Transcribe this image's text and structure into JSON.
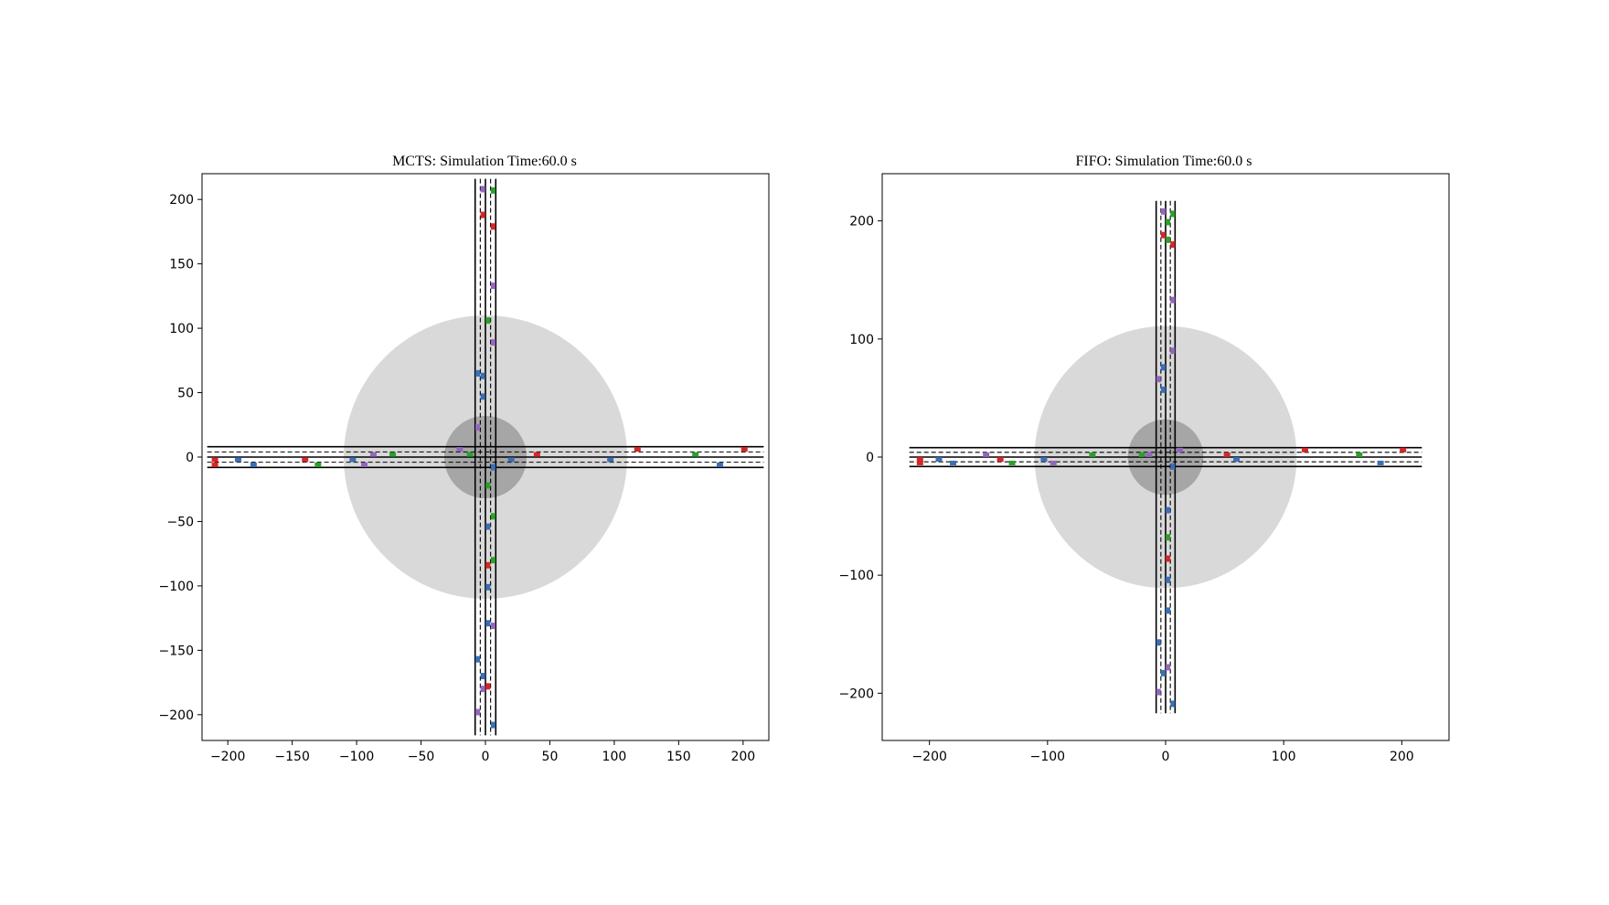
{
  "chart_data": [
    {
      "type": "scatter",
      "title": "MCTS: Simulation Time:60.0 s",
      "xlim": [
        -220,
        220
      ],
      "ylim": [
        -220,
        220
      ],
      "xticks": [
        -200,
        -150,
        -100,
        -50,
        0,
        50,
        100,
        150,
        200
      ],
      "yticks": [
        -200,
        -150,
        -100,
        -50,
        0,
        50,
        100,
        150,
        200
      ],
      "xticklabels": [
        "−200",
        "−150",
        "−100",
        "−50",
        "0",
        "50",
        "100",
        "150",
        "200"
      ],
      "yticklabels": [
        "−200",
        "−150",
        "−100",
        "−50",
        "0",
        "50",
        "100",
        "150",
        "200"
      ],
      "grid": false,
      "zones": [
        {
          "kind": "outer-zone",
          "radius": 110,
          "color": "#d9d9d9"
        },
        {
          "kind": "inner-zone",
          "radius": 32,
          "color": "#a6a6a6"
        }
      ],
      "roads": {
        "extent": 216,
        "edge": 8,
        "center": 0,
        "lane_dividers": [
          -4,
          4
        ]
      },
      "colors": {
        "blue": "#3b6fb6",
        "red": "#d62728",
        "green": "#2ca02c",
        "purple": "#9467bd"
      },
      "vehicles": [
        {
          "x": -210,
          "y": -2,
          "c": "red"
        },
        {
          "x": -210,
          "y": -6,
          "c": "red"
        },
        {
          "x": -192,
          "y": -2,
          "c": "blue"
        },
        {
          "x": -180,
          "y": -6,
          "c": "blue"
        },
        {
          "x": -140,
          "y": -2,
          "c": "red"
        },
        {
          "x": -130,
          "y": -6,
          "c": "green"
        },
        {
          "x": -103,
          "y": -2,
          "c": "blue"
        },
        {
          "x": -94,
          "y": -6,
          "c": "purple"
        },
        {
          "x": -87,
          "y": 2,
          "c": "purple"
        },
        {
          "x": -72,
          "y": 2,
          "c": "green"
        },
        {
          "x": -20,
          "y": 6,
          "c": "purple"
        },
        {
          "x": -12,
          "y": 2,
          "c": "green"
        },
        {
          "x": 20,
          "y": -2,
          "c": "blue"
        },
        {
          "x": 40,
          "y": 2,
          "c": "red"
        },
        {
          "x": 97,
          "y": -2,
          "c": "blue"
        },
        {
          "x": 118,
          "y": 6,
          "c": "red"
        },
        {
          "x": 163,
          "y": 2,
          "c": "green"
        },
        {
          "x": 182,
          "y": -6,
          "c": "blue"
        },
        {
          "x": 201,
          "y": 6,
          "c": "red"
        },
        {
          "x": -2,
          "y": 208,
          "c": "purple"
        },
        {
          "x": 6,
          "y": 207,
          "c": "green"
        },
        {
          "x": -2,
          "y": 188,
          "c": "red"
        },
        {
          "x": 6,
          "y": 179,
          "c": "red"
        },
        {
          "x": 6,
          "y": 133,
          "c": "purple"
        },
        {
          "x": 2,
          "y": 106,
          "c": "green"
        },
        {
          "x": 6,
          "y": 89,
          "c": "purple"
        },
        {
          "x": -6,
          "y": 65,
          "c": "blue"
        },
        {
          "x": -2,
          "y": 63,
          "c": "blue"
        },
        {
          "x": -2,
          "y": 47,
          "c": "blue"
        },
        {
          "x": -6,
          "y": 23,
          "c": "purple"
        },
        {
          "x": 6,
          "y": -8,
          "c": "blue"
        },
        {
          "x": 2,
          "y": -22,
          "c": "green"
        },
        {
          "x": 6,
          "y": -46,
          "c": "green"
        },
        {
          "x": 2,
          "y": -54,
          "c": "blue"
        },
        {
          "x": 6,
          "y": -80,
          "c": "green"
        },
        {
          "x": 2,
          "y": -84,
          "c": "red"
        },
        {
          "x": 2,
          "y": -101,
          "c": "blue"
        },
        {
          "x": 2,
          "y": -129,
          "c": "blue"
        },
        {
          "x": 6,
          "y": -131,
          "c": "purple"
        },
        {
          "x": -6,
          "y": -157,
          "c": "blue"
        },
        {
          "x": -2,
          "y": -170,
          "c": "blue"
        },
        {
          "x": 2,
          "y": -178,
          "c": "red"
        },
        {
          "x": -2,
          "y": -180,
          "c": "purple"
        },
        {
          "x": -6,
          "y": -198,
          "c": "purple"
        },
        {
          "x": 6,
          "y": -208,
          "c": "blue"
        }
      ]
    },
    {
      "type": "scatter",
      "title": "FIFO: Simulation Time:60.0 s",
      "xlim": [
        -240,
        240
      ],
      "ylim": [
        -240,
        240
      ],
      "xticks": [
        -200,
        -100,
        0,
        100,
        200
      ],
      "yticks": [
        -200,
        -100,
        0,
        100,
        200
      ],
      "xticklabels": [
        "−200",
        "−100",
        "0",
        "100",
        "200"
      ],
      "yticklabels": [
        "−200",
        "−100",
        "0",
        "100",
        "200"
      ],
      "grid": false,
      "zones": [
        {
          "kind": "outer-zone",
          "radius": 111,
          "color": "#d9d9d9"
        },
        {
          "kind": "inner-zone",
          "radius": 32,
          "color": "#a6a6a6"
        }
      ],
      "roads": {
        "extent": 217,
        "edge": 8,
        "center": 0,
        "lane_dividers": [
          -4,
          4
        ]
      },
      "colors": {
        "blue": "#3b6fb6",
        "red": "#d62728",
        "green": "#2ca02c",
        "purple": "#9467bd"
      },
      "vehicles": [
        {
          "x": -208,
          "y": -2,
          "c": "red"
        },
        {
          "x": -208,
          "y": -5,
          "c": "red"
        },
        {
          "x": -192,
          "y": -2,
          "c": "blue"
        },
        {
          "x": -180,
          "y": -5,
          "c": "blue"
        },
        {
          "x": -152,
          "y": 2,
          "c": "purple"
        },
        {
          "x": -140,
          "y": -2,
          "c": "red"
        },
        {
          "x": -130,
          "y": -5,
          "c": "green"
        },
        {
          "x": -103,
          "y": -2,
          "c": "blue"
        },
        {
          "x": -95,
          "y": -5,
          "c": "purple"
        },
        {
          "x": -62,
          "y": 2,
          "c": "green"
        },
        {
          "x": -20,
          "y": 2,
          "c": "green"
        },
        {
          "x": -14,
          "y": 2,
          "c": "purple"
        },
        {
          "x": 12,
          "y": 6,
          "c": "purple"
        },
        {
          "x": 52,
          "y": 2,
          "c": "red"
        },
        {
          "x": 60,
          "y": -2,
          "c": "blue"
        },
        {
          "x": 118,
          "y": 6,
          "c": "red"
        },
        {
          "x": 164,
          "y": 2,
          "c": "green"
        },
        {
          "x": 182,
          "y": -5,
          "c": "blue"
        },
        {
          "x": 201,
          "y": 6,
          "c": "red"
        },
        {
          "x": -2,
          "y": 208,
          "c": "purple"
        },
        {
          "x": 6,
          "y": 206,
          "c": "green"
        },
        {
          "x": 2,
          "y": 199,
          "c": "green"
        },
        {
          "x": -2,
          "y": 188,
          "c": "red"
        },
        {
          "x": 2,
          "y": 184,
          "c": "green"
        },
        {
          "x": 6,
          "y": 180,
          "c": "red"
        },
        {
          "x": 6,
          "y": 133,
          "c": "purple"
        },
        {
          "x": 6,
          "y": 90,
          "c": "purple"
        },
        {
          "x": -2,
          "y": 76,
          "c": "blue"
        },
        {
          "x": -6,
          "y": 66,
          "c": "purple"
        },
        {
          "x": -2,
          "y": 57,
          "c": "blue"
        },
        {
          "x": 6,
          "y": -8,
          "c": "blue"
        },
        {
          "x": 2,
          "y": -45,
          "c": "blue"
        },
        {
          "x": 2,
          "y": -68,
          "c": "green"
        },
        {
          "x": 2,
          "y": -86,
          "c": "red"
        },
        {
          "x": 2,
          "y": -104,
          "c": "blue"
        },
        {
          "x": 2,
          "y": -130,
          "c": "blue"
        },
        {
          "x": -6,
          "y": -157,
          "c": "blue"
        },
        {
          "x": 2,
          "y": -178,
          "c": "purple"
        },
        {
          "x": -2,
          "y": -183,
          "c": "blue"
        },
        {
          "x": -6,
          "y": -199,
          "c": "purple"
        },
        {
          "x": 6,
          "y": -209,
          "c": "blue"
        }
      ]
    }
  ]
}
